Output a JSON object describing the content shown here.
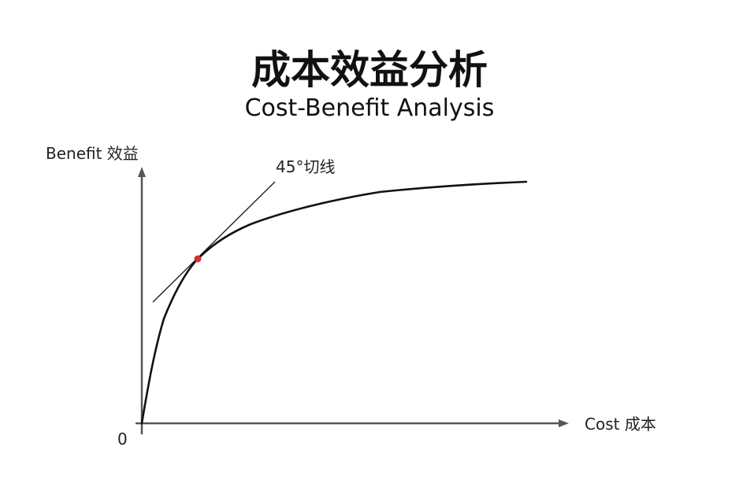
{
  "title": {
    "zh": "成本效益分析",
    "en": "Cost-Benefit Analysis"
  },
  "axes": {
    "y_label": "Benefit 效益",
    "x_label": "Cost 成本",
    "origin_label": "0"
  },
  "annotation": {
    "tangent_label": "45°切线"
  },
  "colors": {
    "axis": "#55555f",
    "curve": "#111111",
    "tangent": "#222222",
    "point": "#d8322b"
  }
}
